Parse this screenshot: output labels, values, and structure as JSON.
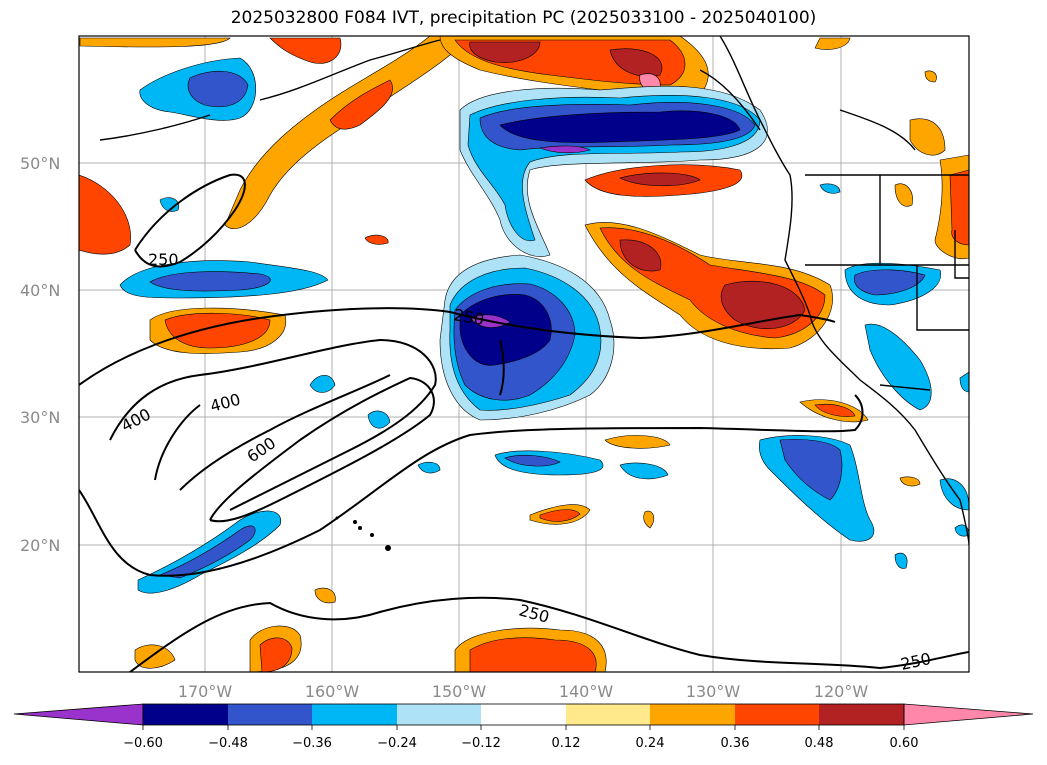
{
  "title": "2025032800 F084 IVT, precipitation PC (2025033100 - 2025040100)",
  "lat_labels": [
    "50°N",
    "40°N",
    "30°N",
    "20°N"
  ],
  "lon_labels": [
    "170°W",
    "160°W",
    "150°W",
    "140°W",
    "130°W",
    "120°W"
  ],
  "contour_labels": [
    "250",
    "400",
    "400",
    "600",
    "250",
    "250",
    "250"
  ],
  "colorbar": {
    "ticks": [
      "−0.60",
      "−0.48",
      "−0.36",
      "−0.24",
      "−0.12",
      "0.12",
      "0.24",
      "0.36",
      "0.48",
      "0.60"
    ],
    "colors": [
      "#9933cc",
      "#00008b",
      "#3355cc",
      "#00b7f5",
      "#aee2f7",
      "#ffffff",
      "#ffe98a",
      "#ffa500",
      "#ff4500",
      "#b22222",
      "#ff88aa"
    ]
  }
}
